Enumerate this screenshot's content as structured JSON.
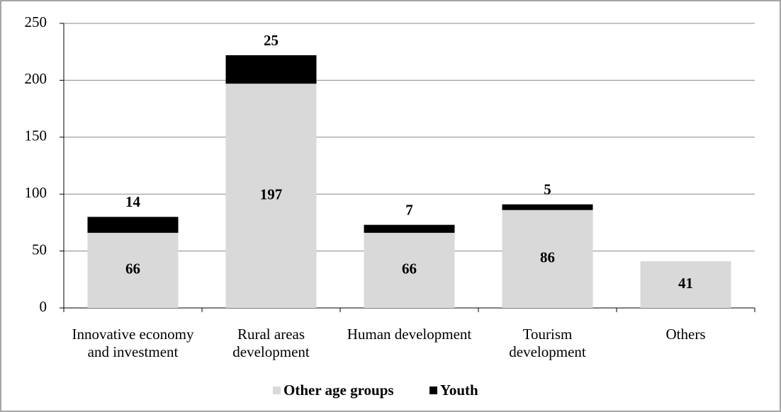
{
  "chart_data": {
    "type": "bar",
    "stacked": true,
    "categories": [
      "Innovative economy and investment",
      "Rural areas development",
      "Human development",
      "Tourism development",
      "Others"
    ],
    "series": [
      {
        "name": "Other age groups",
        "color": "#d9d9d9",
        "values": [
          66,
          197,
          66,
          86,
          41
        ]
      },
      {
        "name": "Youth",
        "color": "#000000",
        "values": [
          14,
          25,
          7,
          5,
          null
        ]
      }
    ],
    "ylim": [
      0,
      250
    ],
    "yticks": [
      0,
      50,
      100,
      150,
      200,
      250
    ],
    "grid": true,
    "legend": "bottom"
  }
}
